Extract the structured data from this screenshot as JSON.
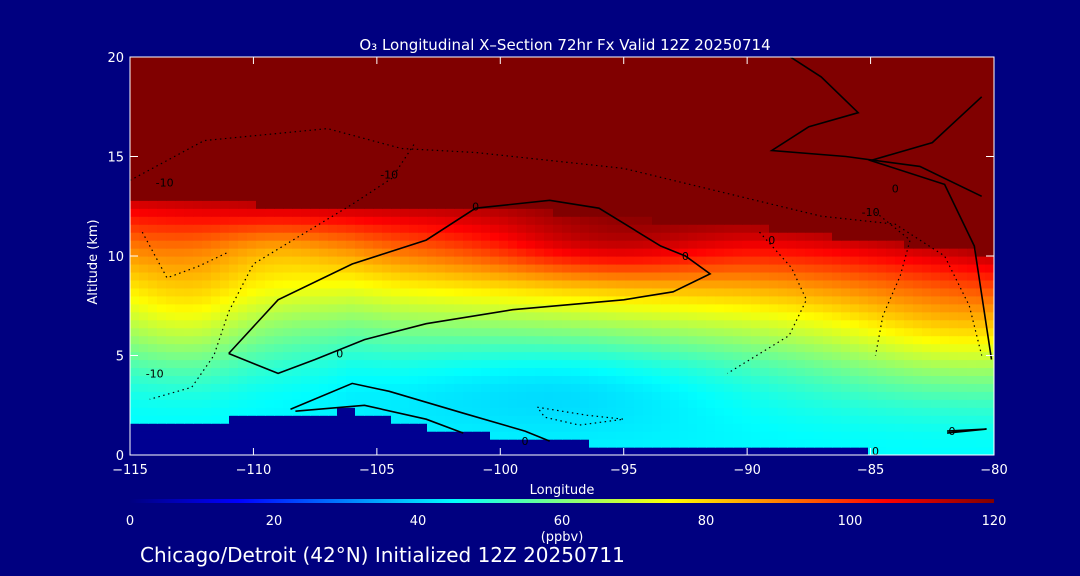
{
  "chart_data": {
    "type": "heatmap",
    "title": "O₃ Longitudinal X–Section 72hr  Fx Valid 12Z 20250714",
    "xlabel": "Longitude",
    "ylabel": "Altitude (km)",
    "xlim": [
      -115,
      -80
    ],
    "ylim": [
      0,
      20
    ],
    "x_ticks": [
      -115,
      -110,
      -105,
      -100,
      -95,
      -90,
      -85,
      -80
    ],
    "y_ticks": [
      0,
      5,
      10,
      15,
      20
    ],
    "x_tick_labels": [
      "−115",
      "−110",
      "−105",
      "−100",
      "−95",
      "−90",
      "−85",
      "−80"
    ],
    "y_tick_labels": [
      "0",
      "5",
      "10",
      "15",
      "20"
    ],
    "colorbar": {
      "min": 0,
      "max": 120,
      "ticks": [
        0,
        20,
        40,
        60,
        80,
        100,
        120
      ],
      "tick_labels": [
        "0",
        "20",
        "40",
        "60",
        "80",
        "100",
        "120"
      ],
      "label": "(ppbv)",
      "colors": [
        "#000080",
        "#0000ff",
        "#0080ff",
        "#00ffff",
        "#80ff80",
        "#ffff00",
        "#ff8000",
        "#ff0000",
        "#800000"
      ]
    },
    "surface_km": [
      [
        -115,
        1.8
      ],
      [
        -112,
        1.6
      ],
      [
        -110,
        2.0
      ],
      [
        -107,
        2.1
      ],
      [
        -106,
        2.3
      ],
      [
        -104,
        1.6
      ],
      [
        -100,
        0.9
      ],
      [
        -95,
        0.5
      ],
      [
        -90,
        0.3
      ],
      [
        -85,
        0.2
      ],
      [
        -80,
        0.1
      ]
    ],
    "tropopause_km": [
      [
        -115,
        13.0
      ],
      [
        -110,
        12.6
      ],
      [
        -105,
        12.5
      ],
      [
        -100,
        12.4
      ],
      [
        -95,
        11.9
      ],
      [
        -90,
        11.5
      ],
      [
        -85,
        10.8
      ],
      [
        -80,
        10.1
      ]
    ],
    "contour_labels": [
      {
        "lon": -113.6,
        "alt": 13.7,
        "text": "-10"
      },
      {
        "lon": -104.5,
        "alt": 14.1,
        "text": "-10"
      },
      {
        "lon": -101.0,
        "alt": 12.5,
        "text": "0"
      },
      {
        "lon": -92.5,
        "alt": 10.0,
        "text": "0"
      },
      {
        "lon": -106.5,
        "alt": 5.1,
        "text": "0"
      },
      {
        "lon": -114.0,
        "alt": 4.1,
        "text": "-10"
      },
      {
        "lon": -85.0,
        "alt": 12.2,
        "text": "-10"
      },
      {
        "lon": -84.0,
        "alt": 13.4,
        "text": "0"
      },
      {
        "lon": -89.0,
        "alt": 10.8,
        "text": "0"
      },
      {
        "lon": -99.0,
        "alt": 0.7,
        "text": "0"
      },
      {
        "lon": -84.8,
        "alt": 0.2,
        "text": "0"
      },
      {
        "lon": -81.7,
        "alt": 1.2,
        "text": "0"
      }
    ]
  },
  "footer": {
    "caption": "Chicago/Detroit (42°N) Initialized 12Z 20250711"
  }
}
